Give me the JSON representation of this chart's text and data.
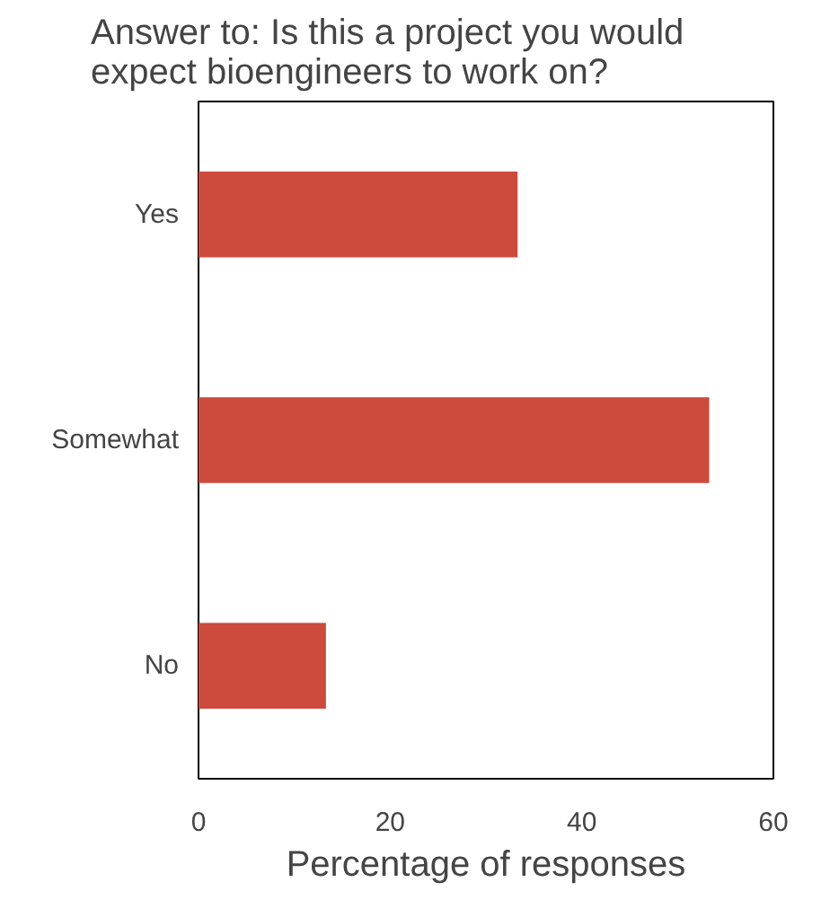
{
  "chart_data": {
    "type": "bar",
    "orientation": "horizontal",
    "title": "Answer to: Is this a project you would expect bioengineers to work on?",
    "xlabel": "Percentage of responses",
    "categories": [
      "Yes",
      "Somewhat",
      "No"
    ],
    "values": [
      33.3,
      53.3,
      13.3
    ],
    "color": "#cc4b3d",
    "xlim": [
      0,
      60
    ],
    "xticks": [
      0,
      20,
      40,
      60
    ]
  }
}
